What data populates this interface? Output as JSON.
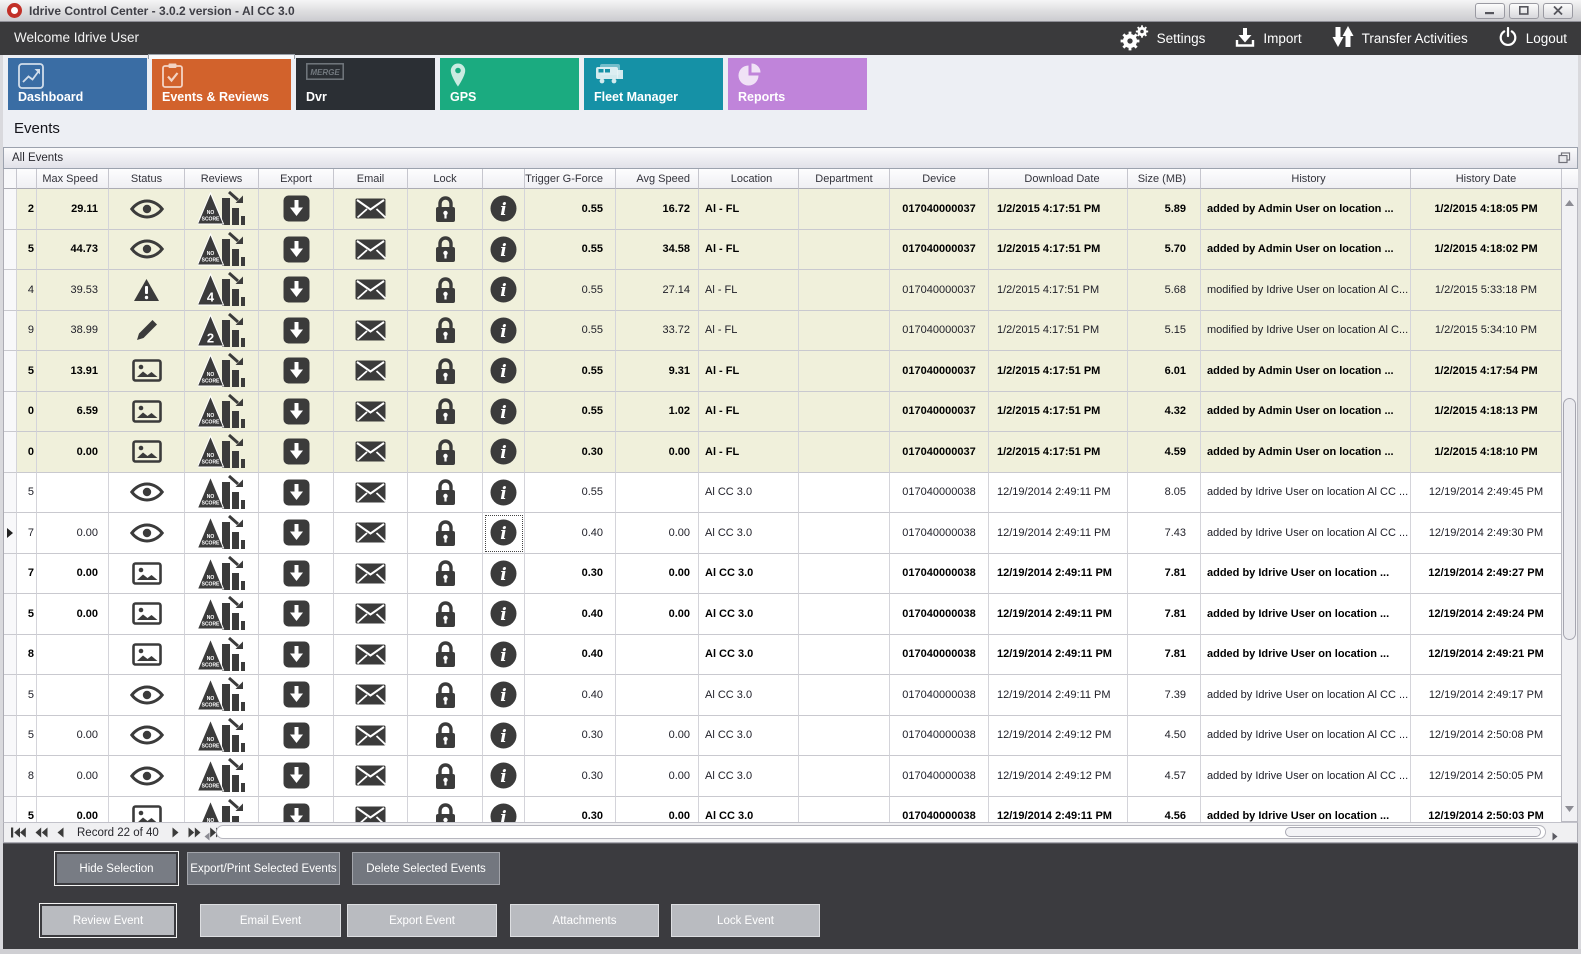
{
  "window": {
    "title": "Idrive Control Center - 3.0.2 version - Al CC 3.0",
    "controls": [
      {
        "icon": "minimize-icon"
      },
      {
        "icon": "maximize-icon"
      },
      {
        "icon": "close-icon"
      }
    ]
  },
  "header": {
    "welcome": "Welcome Idrive User",
    "actions": [
      {
        "label": "Settings",
        "icon": "settings-gears-icon"
      },
      {
        "label": "Import",
        "icon": "import-icon"
      },
      {
        "label": "Transfer Activities",
        "icon": "transfer-activities-icon"
      },
      {
        "label": "Logout",
        "icon": "logout-power-icon"
      }
    ]
  },
  "tabs": [
    {
      "label": "Dashboard",
      "icon": "chart-line-icon",
      "color": "#3A6DA4",
      "selected": false
    },
    {
      "label": "Events & Reviews",
      "icon": "clipboard-check-icon",
      "color": "#D2622C",
      "selected": true
    },
    {
      "label": "Dvr",
      "icon": "dvr-logo-icon",
      "color": "#2B2F34",
      "selected": false,
      "logo_text": "MERGE"
    },
    {
      "label": "GPS",
      "icon": "gps-pin-icon",
      "color": "#1BAB80",
      "selected": false
    },
    {
      "label": "Fleet Manager",
      "icon": "fleet-trucks-icon",
      "color": "#1591A6",
      "selected": false
    },
    {
      "label": "Reports",
      "icon": "pie-chart-icon",
      "color": "#C084DA",
      "selected": false
    }
  ],
  "page_title": "Events",
  "panel_title": "All Events",
  "colors": {
    "accent_orange": "#D2622C",
    "dark_bar": "#3A3A3C",
    "row_highlight": "#F0F0DB",
    "icon_dark": "#3B3B3B"
  },
  "table": {
    "columns": [
      {
        "key": "indicator",
        "label": ""
      },
      {
        "key": "id",
        "label": ""
      },
      {
        "key": "max_speed",
        "label": "Max Speed"
      },
      {
        "key": "status",
        "label": "Status"
      },
      {
        "key": "reviews",
        "label": "Reviews"
      },
      {
        "key": "export",
        "label": "Export"
      },
      {
        "key": "email",
        "label": "Email"
      },
      {
        "key": "lock",
        "label": "Lock"
      },
      {
        "key": "info",
        "label": ""
      },
      {
        "key": "trigger_g_force",
        "label": "Trigger G-Force"
      },
      {
        "key": "avg_speed",
        "label": "Avg Speed"
      },
      {
        "key": "location",
        "label": "Location"
      },
      {
        "key": "department",
        "label": "Department"
      },
      {
        "key": "device",
        "label": "Device"
      },
      {
        "key": "download_date",
        "label": "Download Date"
      },
      {
        "key": "size_mb",
        "label": "Size (MB)"
      },
      {
        "key": "history",
        "label": "History"
      },
      {
        "key": "history_date",
        "label": "History Date"
      }
    ],
    "action_icons": {
      "export": "export-icon",
      "email": "email-icon",
      "lock": "lock-icon",
      "info": "info-icon"
    },
    "rows": [
      {
        "id": "2",
        "max_speed": "29.11",
        "status": "eye",
        "review": "NO SCORE",
        "trigger_g_force": "0.55",
        "avg_speed": "16.72",
        "location": "Al - FL",
        "department": "",
        "device": "017040000037",
        "download_date": "1/2/2015 4:17:51 PM",
        "size_mb": "5.89",
        "history": "added by Admin User on location ...",
        "history_date": "1/2/2015 4:18:05 PM",
        "bold": true,
        "highlighted": true
      },
      {
        "id": "5",
        "max_speed": "44.73",
        "status": "eye",
        "review": "NO SCORE",
        "trigger_g_force": "0.55",
        "avg_speed": "34.58",
        "location": "Al - FL",
        "department": "",
        "device": "017040000037",
        "download_date": "1/2/2015 4:17:51 PM",
        "size_mb": "5.70",
        "history": "added by Admin User on location ...",
        "history_date": "1/2/2015 4:18:02 PM",
        "bold": true,
        "highlighted": true
      },
      {
        "id": "4",
        "max_speed": "39.53",
        "status": "alert",
        "review": "4",
        "trigger_g_force": "0.55",
        "avg_speed": "27.14",
        "location": "Al - FL",
        "department": "",
        "device": "017040000037",
        "download_date": "1/2/2015 4:17:51 PM",
        "size_mb": "5.68",
        "history": "modified by Idrive User on location Al C...",
        "history_date": "1/2/2015 5:33:18 PM",
        "bold": false,
        "highlighted": true
      },
      {
        "id": "9",
        "max_speed": "38.99",
        "status": "pencil",
        "review": "2",
        "trigger_g_force": "0.55",
        "avg_speed": "33.72",
        "location": "Al - FL",
        "department": "",
        "device": "017040000037",
        "download_date": "1/2/2015 4:17:51 PM",
        "size_mb": "5.15",
        "history": "modified by Idrive User on location Al C...",
        "history_date": "1/2/2015 5:34:10 PM",
        "bold": false,
        "highlighted": true
      },
      {
        "id": "5",
        "max_speed": "13.91",
        "status": "image",
        "review": "NO SCORE",
        "trigger_g_force": "0.55",
        "avg_speed": "9.31",
        "location": "Al - FL",
        "department": "",
        "device": "017040000037",
        "download_date": "1/2/2015 4:17:51 PM",
        "size_mb": "6.01",
        "history": "added by Admin User on location ...",
        "history_date": "1/2/2015 4:17:54 PM",
        "bold": true,
        "highlighted": true
      },
      {
        "id": "0",
        "max_speed": "6.59",
        "status": "image",
        "review": "NO SCORE",
        "trigger_g_force": "0.55",
        "avg_speed": "1.02",
        "location": "Al - FL",
        "department": "",
        "device": "017040000037",
        "download_date": "1/2/2015 4:17:51 PM",
        "size_mb": "4.32",
        "history": "added by Admin User on location ...",
        "history_date": "1/2/2015 4:18:13 PM",
        "bold": true,
        "highlighted": true
      },
      {
        "id": "0",
        "max_speed": "0.00",
        "status": "image",
        "review": "NO SCORE",
        "trigger_g_force": "0.30",
        "avg_speed": "0.00",
        "location": "Al - FL",
        "department": "",
        "device": "017040000037",
        "download_date": "1/2/2015 4:17:51 PM",
        "size_mb": "4.59",
        "history": "added by Admin User on location ...",
        "history_date": "1/2/2015 4:18:10 PM",
        "bold": true,
        "highlighted": true
      },
      {
        "id": "5",
        "max_speed": "",
        "status": "eye",
        "review": "NO SCORE",
        "trigger_g_force": "0.55",
        "avg_speed": "",
        "location": "Al CC 3.0",
        "department": "",
        "device": "017040000038",
        "download_date": "12/19/2014 2:49:11 PM",
        "size_mb": "8.05",
        "history": "added by Idrive User on location Al CC ...",
        "history_date": "12/19/2014 2:49:45 PM",
        "bold": false,
        "highlighted": false
      },
      {
        "id": "7",
        "max_speed": "0.00",
        "status": "eye",
        "review": "NO SCORE",
        "trigger_g_force": "0.40",
        "avg_speed": "0.00",
        "location": "Al CC 3.0",
        "department": "",
        "device": "017040000038",
        "download_date": "12/19/2014 2:49:11 PM",
        "size_mb": "7.43",
        "history": "added by Idrive User on location Al CC ...",
        "history_date": "12/19/2014 2:49:30 PM",
        "bold": false,
        "highlighted": false,
        "selected": true,
        "focused": true
      },
      {
        "id": "7",
        "max_speed": "0.00",
        "status": "image",
        "review": "NO SCORE",
        "trigger_g_force": "0.30",
        "avg_speed": "0.00",
        "location": "Al CC 3.0",
        "department": "",
        "device": "017040000038",
        "download_date": "12/19/2014 2:49:11 PM",
        "size_mb": "7.81",
        "history": "added by Idrive User on location ...",
        "history_date": "12/19/2014 2:49:27 PM",
        "bold": true,
        "highlighted": false
      },
      {
        "id": "5",
        "max_speed": "0.00",
        "status": "image",
        "review": "NO SCORE",
        "trigger_g_force": "0.40",
        "avg_speed": "0.00",
        "location": "Al CC 3.0",
        "department": "",
        "device": "017040000038",
        "download_date": "12/19/2014 2:49:11 PM",
        "size_mb": "7.81",
        "history": "added by Idrive User on location ...",
        "history_date": "12/19/2014 2:49:24 PM",
        "bold": true,
        "highlighted": false
      },
      {
        "id": "8",
        "max_speed": "",
        "status": "image",
        "review": "NO SCORE",
        "trigger_g_force": "0.40",
        "avg_speed": "",
        "location": "Al CC 3.0",
        "department": "",
        "device": "017040000038",
        "download_date": "12/19/2014 2:49:11 PM",
        "size_mb": "7.81",
        "history": "added by Idrive User on location ...",
        "history_date": "12/19/2014 2:49:21 PM",
        "bold": true,
        "highlighted": false
      },
      {
        "id": "5",
        "max_speed": "",
        "status": "eye",
        "review": "NO SCORE",
        "trigger_g_force": "0.40",
        "avg_speed": "",
        "location": "Al CC 3.0",
        "department": "",
        "device": "017040000038",
        "download_date": "12/19/2014 2:49:11 PM",
        "size_mb": "7.39",
        "history": "added by Idrive User on location Al CC ...",
        "history_date": "12/19/2014 2:49:17 PM",
        "bold": false,
        "highlighted": false
      },
      {
        "id": "5",
        "max_speed": "0.00",
        "status": "eye",
        "review": "NO SCORE",
        "trigger_g_force": "0.30",
        "avg_speed": "0.00",
        "location": "Al CC 3.0",
        "department": "",
        "device": "017040000038",
        "download_date": "12/19/2014 2:49:12 PM",
        "size_mb": "4.50",
        "history": "added by Idrive User on location Al CC ...",
        "history_date": "12/19/2014 2:50:08 PM",
        "bold": false,
        "highlighted": false
      },
      {
        "id": "8",
        "max_speed": "0.00",
        "status": "eye",
        "review": "NO SCORE",
        "trigger_g_force": "0.30",
        "avg_speed": "0.00",
        "location": "Al CC 3.0",
        "department": "",
        "device": "017040000038",
        "download_date": "12/19/2014 2:49:12 PM",
        "size_mb": "4.57",
        "history": "added by Idrive User on location Al CC ...",
        "history_date": "12/19/2014 2:50:05 PM",
        "bold": false,
        "highlighted": false
      },
      {
        "id": "5",
        "max_speed": "0.00",
        "status": "image",
        "review": "NO SCORE",
        "trigger_g_force": "0.30",
        "avg_speed": "0.00",
        "location": "Al CC 3.0",
        "department": "",
        "device": "017040000038",
        "download_date": "12/19/2014 2:49:11 PM",
        "size_mb": "4.56",
        "history": "added by Idrive User on location ...",
        "history_date": "12/19/2014 2:50:03 PM",
        "bold": true,
        "highlighted": false
      }
    ]
  },
  "pager": {
    "record_label": "Record 22 of 40"
  },
  "toolbar_top": {
    "buttons": [
      {
        "label": "Hide Selection",
        "focused": true
      },
      {
        "label": "Export/Print Selected Events",
        "focused": false
      },
      {
        "label": "Delete Selected  Events",
        "focused": false
      }
    ]
  },
  "toolbar_bottom": {
    "buttons": [
      {
        "label": "Review Event",
        "focused": true
      },
      {
        "label": "Email Event",
        "focused": false
      },
      {
        "label": "Export Event",
        "focused": false
      },
      {
        "label": "Attachments",
        "focused": false
      },
      {
        "label": "Lock Event",
        "focused": false
      }
    ]
  }
}
